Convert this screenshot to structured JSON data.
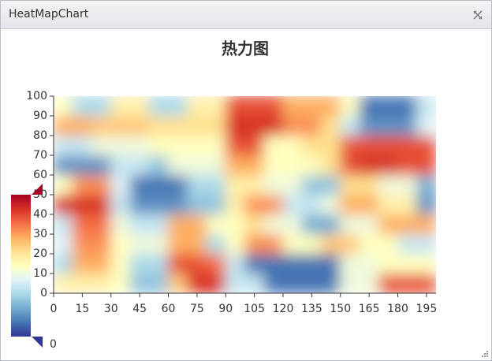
{
  "window": {
    "title": "HeatMapChart"
  },
  "chart_data": {
    "type": "heatmap",
    "title": "热力图",
    "xlim": [
      0,
      200
    ],
    "ylim": [
      0,
      100
    ],
    "xticks": [
      0,
      15,
      30,
      45,
      60,
      75,
      90,
      105,
      120,
      135,
      150,
      165,
      180,
      195
    ],
    "yticks": [
      0,
      10,
      20,
      30,
      40,
      50,
      60,
      70,
      80,
      90,
      100
    ],
    "values": [
      [
        0.55,
        0.55,
        0.55,
        0.5,
        0.25,
        0.25,
        0.65,
        0.9,
        0.9,
        0.35,
        0.35,
        0.1,
        0.1,
        0.1,
        0.1,
        0.45,
        0.45,
        0.85,
        0.85,
        0.85
      ],
      [
        0.3,
        0.7,
        0.7,
        0.5,
        0.3,
        0.3,
        0.85,
        0.85,
        0.8,
        0.35,
        0.1,
        0.1,
        0.1,
        0.1,
        0.1,
        0.45,
        0.45,
        0.5,
        0.5,
        0.5
      ],
      [
        0.4,
        0.75,
        0.75,
        0.5,
        0.45,
        0.45,
        0.7,
        0.7,
        0.3,
        0.5,
        0.75,
        0.75,
        0.5,
        0.5,
        0.65,
        0.65,
        0.5,
        0.5,
        0.35,
        0.35
      ],
      [
        0.35,
        0.8,
        0.8,
        0.45,
        0.35,
        0.35,
        0.7,
        0.7,
        0.5,
        0.5,
        0.6,
        0.45,
        0.45,
        0.2,
        0.2,
        0.45,
        0.45,
        0.7,
        0.7,
        0.7
      ],
      [
        0.9,
        0.9,
        0.9,
        0.35,
        0.15,
        0.15,
        0.15,
        0.25,
        0.25,
        0.55,
        0.75,
        0.75,
        0.35,
        0.35,
        0.45,
        0.7,
        0.7,
        0.55,
        0.55,
        0.15
      ],
      [
        0.5,
        0.75,
        0.75,
        0.4,
        0.1,
        0.1,
        0.1,
        0.3,
        0.3,
        0.55,
        0.55,
        0.45,
        0.45,
        0.25,
        0.25,
        0.6,
        0.6,
        0.45,
        0.45,
        0.2
      ],
      [
        0.15,
        0.15,
        0.15,
        0.35,
        0.35,
        0.25,
        0.45,
        0.45,
        0.45,
        0.7,
        0.7,
        0.5,
        0.5,
        0.5,
        0.6,
        0.85,
        0.9,
        0.9,
        0.85,
        0.85
      ],
      [
        0.35,
        0.35,
        0.45,
        0.45,
        0.45,
        0.5,
        0.5,
        0.5,
        0.5,
        0.85,
        0.85,
        0.5,
        0.5,
        0.6,
        0.6,
        0.85,
        0.85,
        0.85,
        0.85,
        0.85
      ],
      [
        0.7,
        0.7,
        0.65,
        0.65,
        0.65,
        0.6,
        0.6,
        0.6,
        0.6,
        0.9,
        0.9,
        0.9,
        0.75,
        0.75,
        0.6,
        0.35,
        0.15,
        0.15,
        0.15,
        0.4
      ],
      [
        0.5,
        0.3,
        0.3,
        0.55,
        0.55,
        0.3,
        0.3,
        0.55,
        0.55,
        0.85,
        0.85,
        0.85,
        0.7,
        0.7,
        0.7,
        0.5,
        0.1,
        0.1,
        0.1,
        0.35
      ]
    ],
    "colors": [
      "#313695",
      "#4575b4",
      "#74add1",
      "#abd9e9",
      "#e0f3f8",
      "#ffffbf",
      "#fee090",
      "#fdae61",
      "#f46d43",
      "#d73027",
      "#a50026"
    ],
    "visual_map": {
      "range": [
        0,
        1
      ]
    }
  }
}
